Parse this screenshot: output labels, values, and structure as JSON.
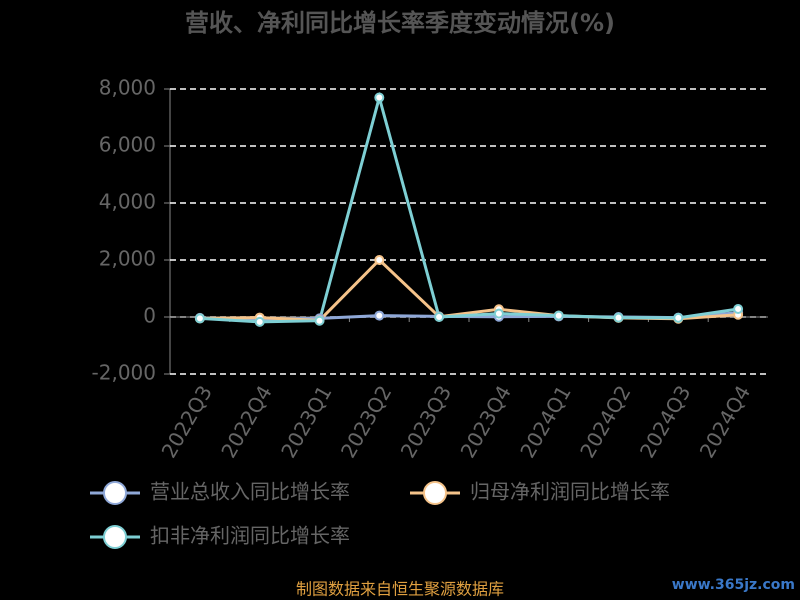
{
  "chart_data": {
    "type": "line",
    "title": "营收、净利同比增长率季度变动情况(%)",
    "categories": [
      "2022Q3",
      "2022Q4",
      "2023Q1",
      "2023Q2",
      "2023Q3",
      "2023Q4",
      "2024Q1",
      "2024Q2",
      "2024Q3",
      "2024Q4"
    ],
    "series": [
      {
        "name": "营业总收入同比增长率",
        "color": "#8fa8d8",
        "values": [
          -30,
          -80,
          -50,
          50,
          20,
          10,
          20,
          0,
          -20,
          150
        ]
      },
      {
        "name": "归母净利润同比增长率",
        "color": "#f5c38a",
        "values": [
          -50,
          -20,
          -120,
          2000,
          10,
          270,
          50,
          -30,
          -60,
          80
        ]
      },
      {
        "name": "扣非净利润同比增长率",
        "color": "#7ecfd4",
        "values": [
          -50,
          -170,
          -130,
          7700,
          0,
          120,
          50,
          -20,
          -30,
          280
        ]
      }
    ],
    "ylim": [
      -2000,
      8000
    ],
    "yticks": [
      {
        "value": -2000,
        "label": "-2,000"
      },
      0,
      {
        "value": 2000,
        "label": "2,000"
      },
      {
        "value": 4000,
        "label": "4,000"
      },
      {
        "value": 6000,
        "label": "6,000"
      },
      {
        "value": 8000,
        "label": "8,000"
      }
    ],
    "grid": true,
    "footer": "制图数据来自恒生聚源数据库",
    "watermark": "www.365jz.com"
  }
}
